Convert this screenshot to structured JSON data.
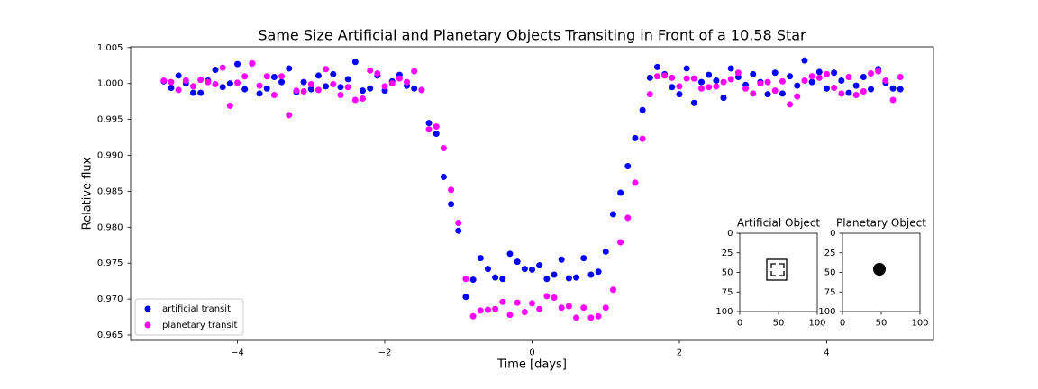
{
  "chart_data": [
    {
      "type": "scatter",
      "title": "Same Size Artificial and Planetary Objects Transiting in Front of a 10.58 Star",
      "xlabel": "Time [days]",
      "ylabel": "Relative flux",
      "xlim": [
        -5.45,
        5.45
      ],
      "ylim": [
        0.96425,
        1.0051
      ],
      "xticks": [
        {
          "value": -4,
          "label": "−4"
        },
        {
          "value": -2,
          "label": "−2"
        },
        0,
        2,
        4
      ],
      "yticks": [
        0.965,
        {
          "value": 0.97,
          "label": "0.970"
        },
        0.975,
        {
          "value": 0.98,
          "label": "0.980"
        },
        0.985,
        {
          "value": 0.99,
          "label": "0.990"
        },
        0.995,
        {
          "value": 1.0,
          "label": "1.000"
        },
        1.005
      ],
      "legend": "lower left",
      "x": [
        -5.0,
        -4.9,
        -4.8,
        -4.7,
        -4.6,
        -4.5,
        -4.4,
        -4.3,
        -4.2,
        -4.1,
        -4.0,
        -3.9,
        -3.8,
        -3.7,
        -3.6,
        -3.5,
        -3.4,
        -3.3,
        -3.2,
        -3.1,
        -3.0,
        -2.9,
        -2.8,
        -2.7,
        -2.6,
        -2.5,
        -2.4,
        -2.3,
        -2.2,
        -2.1,
        -2.0,
        -1.9,
        -1.8,
        -1.7,
        -1.6,
        -1.5,
        -1.4,
        -1.3,
        -1.2,
        -1.1,
        -1.0,
        -0.9,
        -0.8,
        -0.7,
        -0.6,
        -0.5,
        -0.4,
        -0.3,
        -0.2,
        -0.1,
        0.0,
        0.1,
        0.2,
        0.3,
        0.4,
        0.5,
        0.6,
        0.7,
        0.8,
        0.9,
        1.0,
        1.1,
        1.2,
        1.3,
        1.4,
        1.5,
        1.6,
        1.7,
        1.8,
        1.9,
        2.0,
        2.1,
        2.2,
        2.3,
        2.4,
        2.5,
        2.6,
        2.7,
        2.8,
        2.9,
        3.0,
        3.1,
        3.2,
        3.3,
        3.4,
        3.5,
        3.6,
        3.7,
        3.8,
        3.9,
        4.0,
        4.1,
        4.2,
        4.3,
        4.4,
        4.5,
        4.6,
        4.7,
        4.8,
        4.9,
        5.0
      ],
      "series": [
        {
          "name": "artificial transit",
          "color": "#0000ff",
          "values": [
            1.0003,
            0.9994,
            1.0011,
            1.0,
            0.9987,
            0.9987,
            1.0004,
            1.0019,
            0.9995,
            1.0,
            1.0027,
            0.9992,
            1.0028,
            0.9986,
            0.9993,
            1.0009,
            1.0002,
            1.0021,
            0.9988,
            1.0002,
            0.9992,
            1.0011,
            0.9996,
            1.0013,
            0.9995,
            1.0006,
            1.003,
            0.999,
            0.9993,
            1.0011,
            0.999,
            1.0003,
            1.0012,
            0.9997,
            0.9993,
            0.9991,
            0.9945,
            0.993,
            0.987,
            0.9832,
            0.9795,
            0.9703,
            0.9727,
            0.9757,
            0.9742,
            0.973,
            0.9728,
            0.9763,
            0.9752,
            0.9742,
            0.9741,
            0.9747,
            0.9728,
            0.9734,
            0.9755,
            0.9729,
            0.973,
            0.9757,
            0.9734,
            0.9738,
            0.9766,
            0.9818,
            0.9848,
            0.9885,
            0.9924,
            0.9963,
            1.0008,
            1.0023,
            1.0013,
            0.9995,
            0.9985,
            1.0021,
            0.9973,
            1.0002,
            1.0012,
            1.0004,
            0.998,
            1.0021,
            1.0009,
            0.9998,
            1.0013,
            1.0002,
            0.9985,
            1.0015,
            0.9986,
            1.001,
            0.9997,
            1.0032,
            1.0002,
            1.0016,
            0.9993,
            1.0015,
            1.0004,
            0.9987,
            0.9997,
            1.0009,
            0.9992,
            1.002,
            1.0001,
            0.9993,
            0.9992
          ]
        },
        {
          "name": "planetary transit",
          "color": "#ff00ff",
          "values": [
            1.0004,
            1.0002,
            0.9991,
            1.0004,
            0.9996,
            1.0005,
            1.0002,
            0.9999,
            1.0022,
            0.9969,
            1.0001,
            1.001,
            1.0028,
            0.9997,
            1.001,
            0.9984,
            1.001,
            0.9956,
            0.999,
            0.9989,
            0.9999,
            0.9991,
            1.002,
            0.9999,
            0.9984,
            0.9995,
            0.9977,
            0.9979,
            1.0018,
            1.0014,
            0.9996,
            1.0,
            1.0007,
            1.0002,
            1.0017,
            0.9991,
            0.9936,
            0.994,
            0.991,
            0.9852,
            0.9806,
            0.9728,
            0.9676,
            0.9684,
            0.9685,
            0.9686,
            0.9696,
            0.9678,
            0.9695,
            0.9682,
            0.9694,
            0.9686,
            0.9704,
            0.9702,
            0.9688,
            0.969,
            0.9674,
            0.9688,
            0.9674,
            0.9676,
            0.9688,
            0.9713,
            0.9779,
            0.9813,
            0.9862,
            0.9923,
            0.9985,
            1.001,
            1.0011,
            1.0008,
            0.9996,
            1.0007,
            1.0007,
            0.9993,
            0.9995,
            0.9996,
            1.0002,
            1.0006,
            1.0015,
            0.9993,
            0.9986,
            1.0,
            1.0002,
            0.999,
            1.0003,
            0.9971,
            0.9982,
            1.0004,
            1.001,
            1.0008,
            1.0013,
            0.9994,
            0.9986,
            1.0009,
            0.9984,
            0.9989,
            1.0014,
            1.0017,
            1.0004,
            0.9977,
            1.0009
          ]
        }
      ]
    },
    {
      "type": "image",
      "title": "Artificial Object",
      "xlim": [
        0,
        100
      ],
      "ylim": [
        100,
        0
      ],
      "xticks": [
        0,
        50,
        100
      ],
      "yticks": [
        0,
        25,
        50,
        75,
        100
      ]
    },
    {
      "type": "image",
      "title": "Planetary Object",
      "xlim": [
        0,
        100
      ],
      "ylim": [
        100,
        0
      ],
      "xticks": [
        0,
        50,
        100
      ],
      "yticks": [
        0,
        25,
        50,
        75,
        100
      ]
    }
  ]
}
